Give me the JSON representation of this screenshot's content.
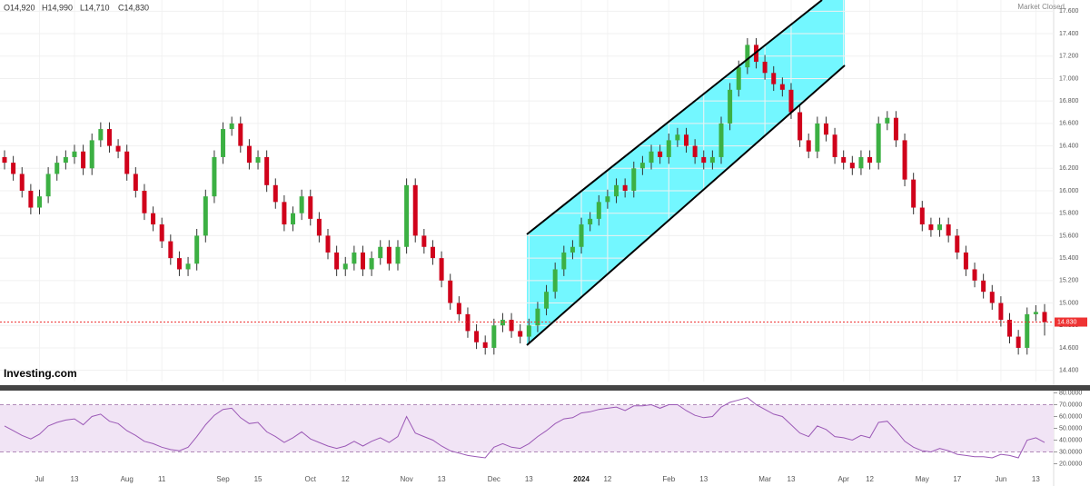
{
  "chart_data": [
    {
      "type": "candlestick",
      "ohlc": [
        "O14,920",
        "H14,990",
        "L14,710",
        "C14,830"
      ],
      "status": "Market Closed",
      "source": "Investing.com",
      "up_color": "#3cb043",
      "down_color": "#d0021b",
      "grid": true,
      "ylim": [
        14.3,
        17.7
      ],
      "yticks": [
        {
          "value": 14.4,
          "label": "14.400"
        },
        {
          "value": 14.6,
          "label": "14.600"
        },
        {
          "value": 14.8,
          "label": "14.800"
        },
        {
          "value": 15.0,
          "label": "15.000"
        },
        {
          "value": 15.2,
          "label": "15.200"
        },
        {
          "value": 15.4,
          "label": "15.400"
        },
        {
          "value": 15.6,
          "label": "15.600"
        },
        {
          "value": 15.8,
          "label": "15.800"
        },
        {
          "value": 16.0,
          "label": "16.000"
        },
        {
          "value": 16.2,
          "label": "16.200"
        },
        {
          "value": 16.4,
          "label": "16.400"
        },
        {
          "value": 16.6,
          "label": "16.600"
        },
        {
          "value": 16.8,
          "label": "16.800"
        },
        {
          "value": 17.0,
          "label": "17.000"
        },
        {
          "value": 17.2,
          "label": "17.200"
        },
        {
          "value": 17.4,
          "label": "17.400"
        },
        {
          "value": 17.6,
          "label": "17.600"
        }
      ],
      "current_price": {
        "value": 14.83,
        "label": "14.830"
      },
      "open": [
        16.3,
        16.25,
        16.15,
        16.0,
        15.85,
        15.95,
        16.15,
        16.25,
        16.3,
        16.35,
        16.2,
        16.45,
        16.55,
        16.4,
        16.35,
        16.15,
        16.0,
        15.8,
        15.7,
        15.55,
        15.4,
        15.3,
        15.35,
        15.6,
        15.95,
        16.3,
        16.55,
        16.6,
        16.4,
        16.25,
        16.3,
        16.05,
        15.9,
        15.7,
        15.8,
        15.95,
        15.75,
        15.6,
        15.45,
        15.3,
        15.35,
        15.45,
        15.3,
        15.4,
        15.5,
        15.35,
        15.5,
        16.05,
        15.6,
        15.5,
        15.4,
        15.2,
        15.0,
        14.9,
        14.75,
        14.65,
        14.6,
        14.8,
        14.85,
        14.75,
        14.7,
        14.8,
        14.95,
        15.1,
        15.3,
        15.45,
        15.5,
        15.7,
        15.75,
        15.9,
        15.95,
        16.05,
        16.0,
        16.2,
        16.25,
        16.35,
        16.3,
        16.45,
        16.5,
        16.4,
        16.3,
        16.25,
        16.3,
        16.6,
        16.9,
        17.1,
        17.3,
        17.15,
        17.05,
        16.95,
        16.9,
        16.7,
        16.45,
        16.35,
        16.6,
        16.5,
        16.3,
        16.25,
        16.2,
        16.3,
        16.25,
        16.6,
        16.65,
        16.45,
        16.1,
        15.85,
        15.7,
        15.65,
        15.7,
        15.6,
        15.45,
        15.3,
        15.2,
        15.1,
        15.0,
        14.85,
        14.7,
        14.6,
        14.9,
        14.92
      ],
      "high": [
        16.36,
        16.31,
        16.21,
        16.06,
        16.01,
        16.21,
        16.31,
        16.36,
        16.41,
        16.41,
        16.51,
        16.61,
        16.61,
        16.46,
        16.41,
        16.21,
        16.06,
        15.86,
        15.76,
        15.61,
        15.46,
        15.41,
        15.66,
        16.01,
        16.36,
        16.61,
        16.66,
        16.66,
        16.46,
        16.36,
        16.36,
        16.11,
        15.96,
        15.86,
        16.01,
        16.01,
        15.81,
        15.66,
        15.51,
        15.41,
        15.51,
        15.51,
        15.46,
        15.56,
        15.56,
        15.56,
        16.11,
        16.11,
        15.66,
        15.56,
        15.46,
        15.26,
        15.06,
        14.96,
        14.81,
        14.71,
        14.86,
        14.91,
        14.91,
        14.81,
        14.86,
        15.01,
        15.16,
        15.36,
        15.51,
        15.56,
        15.76,
        15.81,
        15.96,
        16.01,
        16.11,
        16.11,
        16.26,
        16.31,
        16.41,
        16.41,
        16.51,
        16.56,
        16.56,
        16.46,
        16.36,
        16.36,
        16.66,
        16.96,
        17.16,
        17.36,
        17.36,
        17.21,
        17.11,
        17.01,
        16.96,
        16.76,
        16.51,
        16.66,
        16.66,
        16.56,
        16.36,
        16.31,
        16.36,
        16.36,
        16.66,
        16.71,
        16.71,
        16.51,
        16.16,
        15.91,
        15.76,
        15.76,
        15.76,
        15.66,
        15.51,
        15.36,
        15.26,
        15.16,
        15.06,
        14.91,
        14.76,
        14.96,
        14.98,
        14.99
      ],
      "low": [
        16.19,
        16.09,
        15.94,
        15.79,
        15.79,
        15.89,
        16.09,
        16.19,
        16.24,
        16.14,
        16.14,
        16.39,
        16.34,
        16.29,
        16.09,
        15.94,
        15.74,
        15.64,
        15.49,
        15.34,
        15.24,
        15.24,
        15.29,
        15.54,
        15.89,
        16.24,
        16.49,
        16.34,
        16.19,
        16.19,
        15.99,
        15.84,
        15.64,
        15.64,
        15.74,
        15.69,
        15.54,
        15.39,
        15.24,
        15.24,
        15.29,
        15.24,
        15.24,
        15.34,
        15.29,
        15.29,
        15.44,
        15.54,
        15.44,
        15.34,
        15.14,
        14.94,
        14.84,
        14.69,
        14.59,
        14.54,
        14.54,
        14.74,
        14.69,
        14.64,
        14.64,
        14.74,
        14.89,
        15.04,
        15.24,
        15.39,
        15.44,
        15.64,
        15.69,
        15.84,
        15.89,
        15.94,
        15.94,
        16.14,
        16.19,
        16.24,
        16.24,
        16.39,
        16.34,
        16.24,
        16.19,
        16.19,
        16.24,
        16.54,
        16.84,
        17.04,
        17.09,
        16.99,
        16.89,
        16.84,
        16.64,
        16.39,
        16.29,
        16.29,
        16.44,
        16.24,
        16.19,
        16.14,
        16.14,
        16.19,
        16.19,
        16.54,
        16.39,
        16.04,
        15.79,
        15.64,
        15.59,
        15.59,
        15.54,
        15.39,
        15.24,
        15.14,
        15.04,
        14.94,
        14.79,
        14.64,
        14.54,
        14.54,
        14.84,
        14.71
      ],
      "close": [
        16.25,
        16.15,
        16.0,
        15.85,
        15.95,
        16.15,
        16.25,
        16.3,
        16.35,
        16.2,
        16.45,
        16.55,
        16.4,
        16.35,
        16.15,
        16.0,
        15.8,
        15.7,
        15.55,
        15.4,
        15.3,
        15.35,
        15.6,
        15.95,
        16.3,
        16.55,
        16.6,
        16.4,
        16.25,
        16.3,
        16.05,
        15.9,
        15.7,
        15.8,
        15.95,
        15.75,
        15.6,
        15.45,
        15.3,
        15.35,
        15.45,
        15.3,
        15.4,
        15.5,
        15.35,
        15.5,
        16.05,
        15.6,
        15.5,
        15.4,
        15.2,
        15.0,
        14.9,
        14.75,
        14.65,
        14.6,
        14.8,
        14.85,
        14.75,
        14.7,
        14.8,
        14.95,
        15.1,
        15.3,
        15.45,
        15.5,
        15.7,
        15.75,
        15.9,
        15.95,
        16.05,
        16.0,
        16.2,
        16.25,
        16.35,
        16.3,
        16.45,
        16.5,
        16.4,
        16.3,
        16.25,
        16.3,
        16.6,
        16.9,
        17.1,
        17.3,
        17.15,
        17.05,
        16.95,
        16.9,
        16.7,
        16.45,
        16.35,
        16.6,
        16.5,
        16.3,
        16.25,
        16.2,
        16.3,
        16.25,
        16.6,
        16.65,
        16.45,
        16.1,
        15.85,
        15.7,
        15.65,
        15.7,
        15.6,
        15.45,
        15.3,
        15.2,
        15.1,
        15.0,
        14.85,
        14.7,
        14.6,
        14.9,
        14.92,
        14.83
      ]
    },
    {
      "type": "line",
      "color": "#9b59b6",
      "ylim": [
        15,
        85
      ],
      "yticks": [
        {
          "value": 20,
          "label": "20.0000"
        },
        {
          "value": 30,
          "label": "30.0000"
        },
        {
          "value": 40,
          "label": "40.0000"
        },
        {
          "value": 50,
          "label": "50.0000"
        },
        {
          "value": 60,
          "label": "60.0000"
        },
        {
          "value": 70,
          "label": "70.0000"
        },
        {
          "value": 80,
          "label": "80.0000"
        }
      ],
      "levels": [
        30,
        70
      ],
      "categories": [
        null,
        null,
        null,
        null,
        "Jul",
        null,
        null,
        null,
        "13",
        null,
        null,
        null,
        null,
        null,
        "Aug",
        null,
        null,
        null,
        "11",
        null,
        null,
        null,
        null,
        null,
        null,
        "Sep",
        null,
        null,
        null,
        "15",
        null,
        null,
        null,
        null,
        null,
        "Oct",
        null,
        null,
        null,
        "12",
        null,
        null,
        null,
        null,
        null,
        null,
        "Nov",
        null,
        null,
        null,
        "13",
        null,
        null,
        null,
        null,
        null,
        "Dec",
        null,
        null,
        null,
        "13",
        null,
        null,
        null,
        null,
        null,
        "2024",
        null,
        null,
        "12",
        null,
        null,
        null,
        null,
        null,
        null,
        "Feb",
        null,
        null,
        null,
        "13",
        null,
        null,
        null,
        null,
        null,
        null,
        "Mar",
        null,
        null,
        "13",
        null,
        null,
        null,
        null,
        null,
        "Apr",
        null,
        null,
        "12",
        null,
        null,
        null,
        null,
        null,
        "May",
        null,
        null,
        null,
        "17",
        null,
        null,
        null,
        null,
        "Jun",
        null,
        null,
        null,
        "13",
        null
      ],
      "values": [
        52,
        48,
        44,
        41,
        45,
        52,
        55,
        57,
        58,
        53,
        60,
        62,
        56,
        54,
        48,
        44,
        39,
        37,
        34,
        32,
        31,
        34,
        43,
        53,
        61,
        66,
        67,
        59,
        54,
        55,
        47,
        43,
        38,
        42,
        47,
        41,
        38,
        35,
        33,
        35,
        39,
        35,
        39,
        42,
        38,
        43,
        60,
        46,
        43,
        40,
        35,
        31,
        29,
        27,
        26,
        25,
        34,
        37,
        34,
        33,
        37,
        43,
        48,
        54,
        58,
        59,
        63,
        64,
        66,
        67,
        68,
        65,
        69,
        69,
        70,
        67,
        70,
        70,
        65,
        61,
        59,
        60,
        68,
        72,
        74,
        76,
        70,
        66,
        62,
        60,
        53,
        46,
        43,
        52,
        49,
        43,
        42,
        40,
        44,
        42,
        55,
        56,
        48,
        39,
        34,
        31,
        30,
        33,
        31,
        28,
        27,
        26,
        26,
        25,
        28,
        27,
        25,
        40,
        42,
        38
      ]
    }
  ]
}
